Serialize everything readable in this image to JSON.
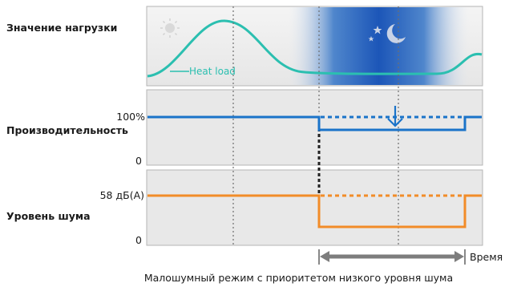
{
  "labels": {
    "load_value": "Значение нагрузки",
    "heat_load": "Heat load",
    "percent_100": "100%",
    "performance": "Производительность",
    "zero_performance": "0",
    "noise_value": "58 дБ(A)",
    "noise_level": "Уровень шума",
    "zero_noise": "0",
    "time": "Время",
    "caption": "Малошумный режим с приоритетом низкого уровня шума"
  },
  "icons": [
    "sun-icon",
    "moon-stars-icon",
    "down-arrow-icon"
  ],
  "colors": {
    "heat_load": "#2bbfb0",
    "performance": "#1a73c9",
    "noise": "#f28c28",
    "night": "#1c56b8",
    "panel_bg": "#e8e8e8"
  }
}
